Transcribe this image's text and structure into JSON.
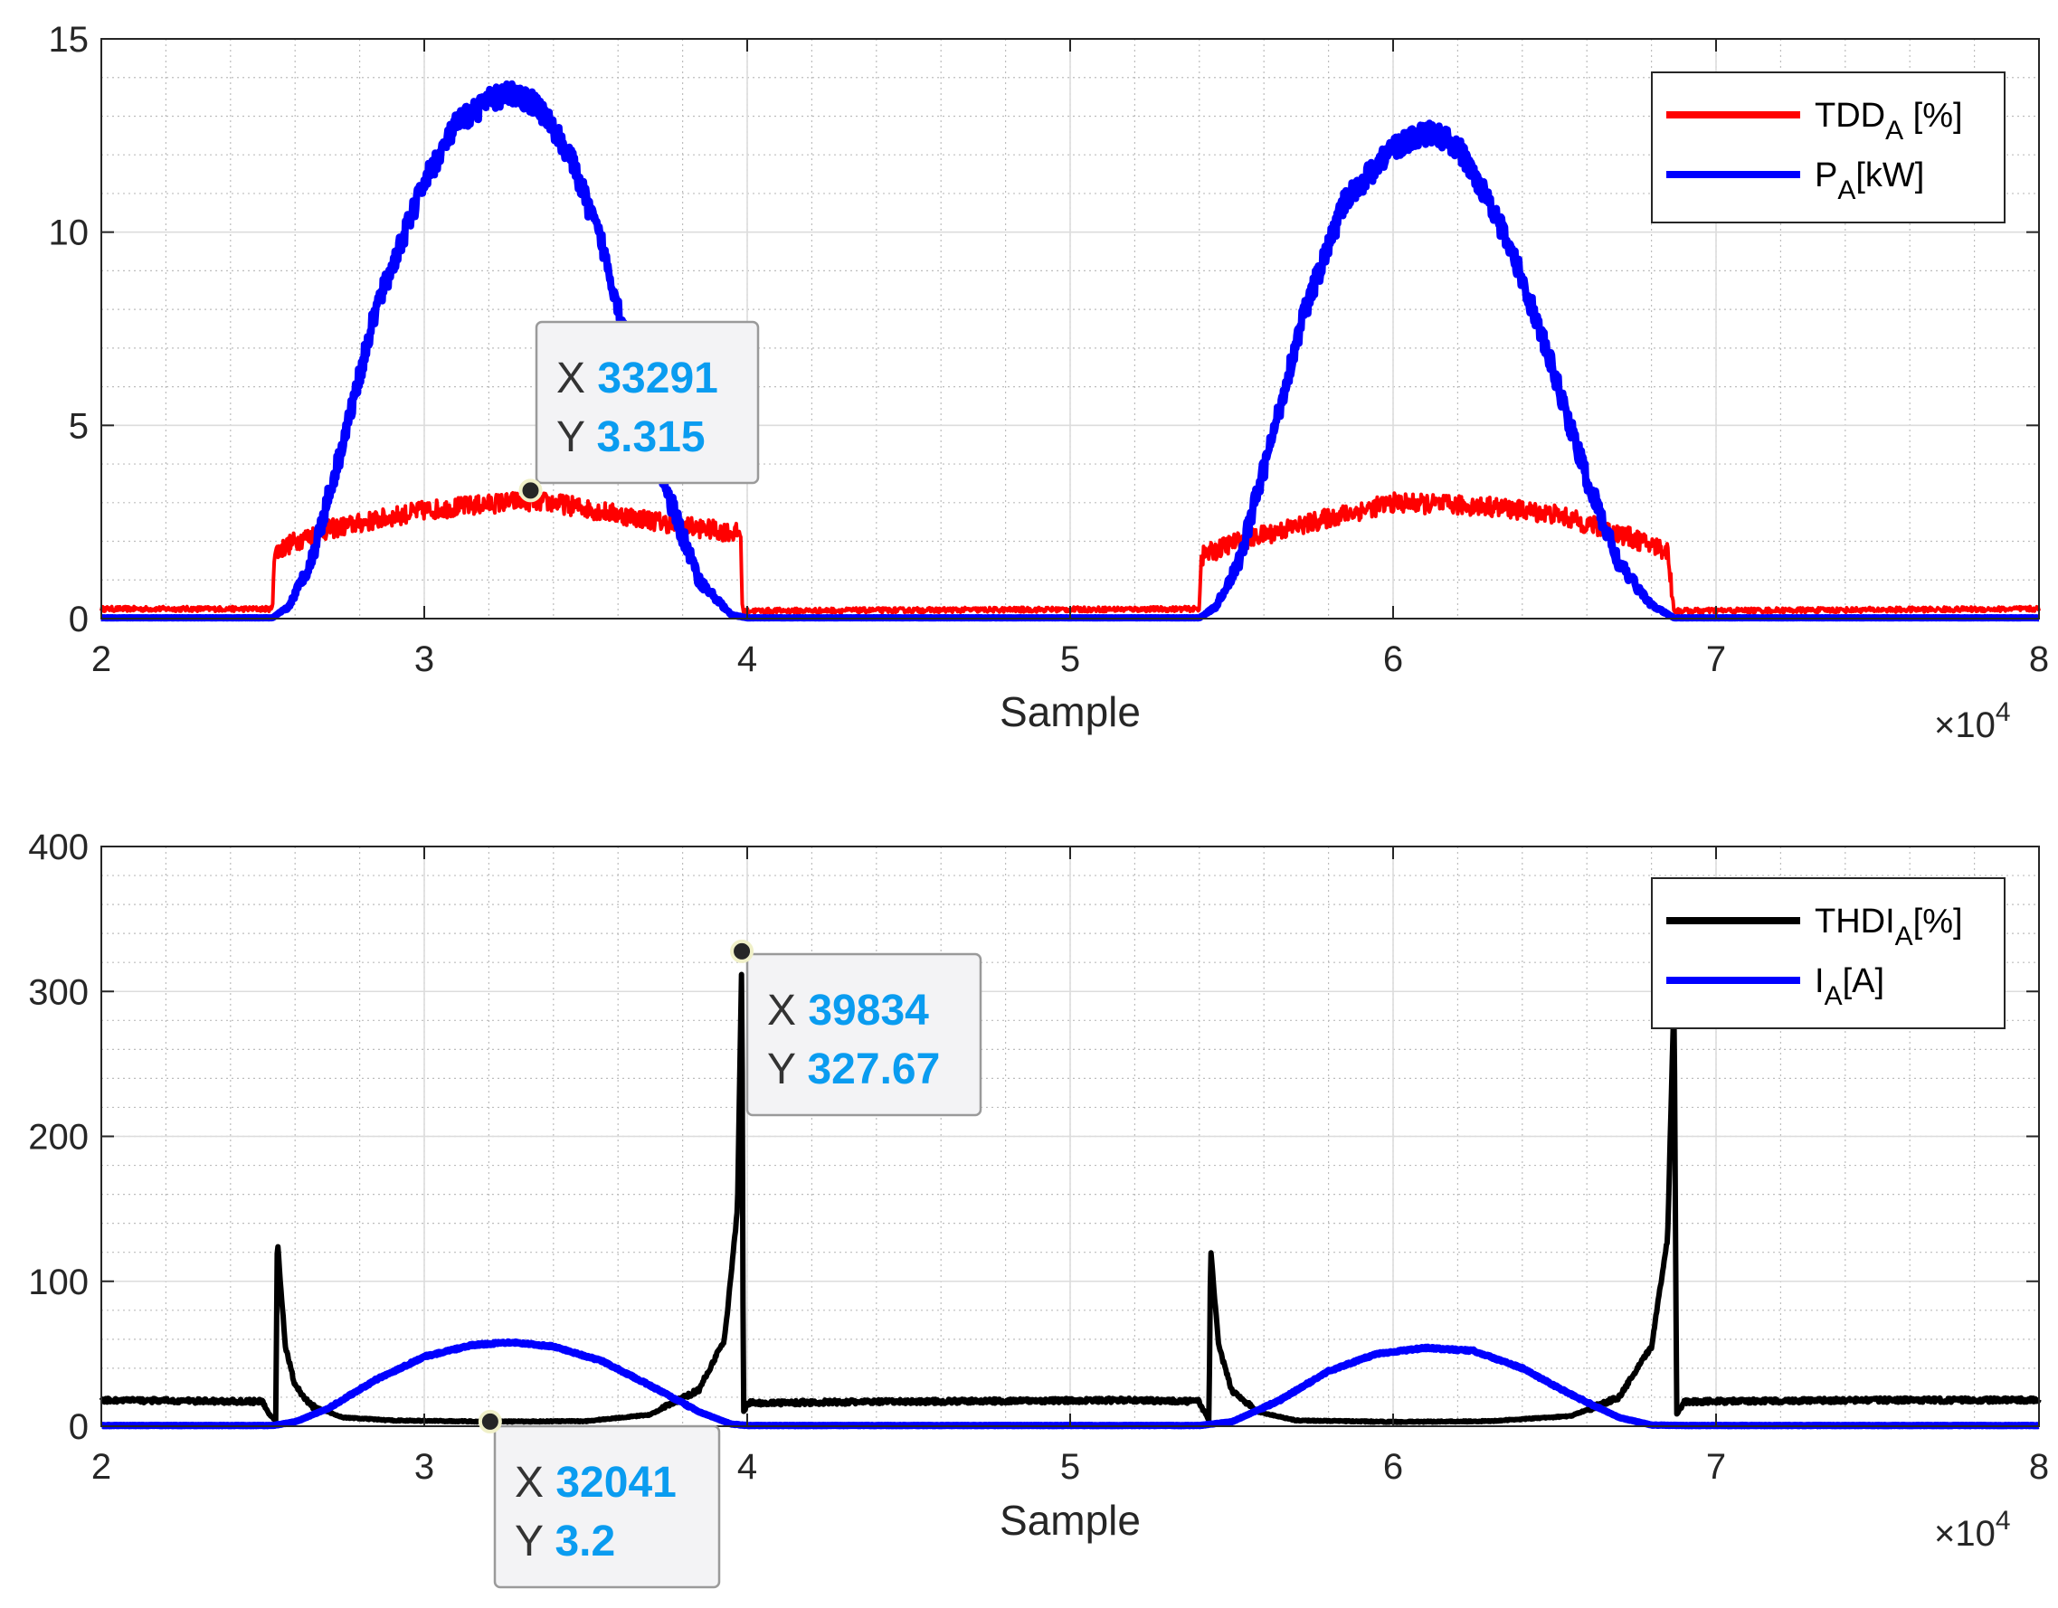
{
  "chart_data": [
    {
      "type": "line",
      "xlabel": "Sample",
      "x_exponent": {
        "base": "×10",
        "power": "4"
      },
      "xlim": [
        20000,
        80000
      ],
      "ylim": [
        0,
        15
      ],
      "x_ticks": [
        20000,
        30000,
        40000,
        50000,
        60000,
        70000,
        80000
      ],
      "x_tick_labels": [
        "2",
        "3",
        "4",
        "5",
        "6",
        "7",
        "8"
      ],
      "y_ticks": [
        0,
        5,
        10,
        15
      ],
      "y_tick_labels": [
        "0",
        "5",
        "10",
        "15"
      ],
      "grid": true,
      "minor_grid": true,
      "legend_position": "top-right",
      "series": [
        {
          "name": "TDD_A [%]",
          "legend_main": "TDD",
          "legend_sub": "A",
          "legend_tail": " [%]",
          "color": "#ff0000",
          "width": 4,
          "noise": 0.25,
          "points": [
            [
              20000,
              0.25
            ],
            [
              25300,
              0.25
            ],
            [
              25350,
              1.7
            ],
            [
              26000,
              2.0
            ],
            [
              27000,
              2.3
            ],
            [
              30000,
              2.8
            ],
            [
              33000,
              3.05
            ],
            [
              34000,
              3.0
            ],
            [
              36000,
              2.7
            ],
            [
              38000,
              2.4
            ],
            [
              39800,
              2.2
            ],
            [
              39850,
              0.2
            ],
            [
              54000,
              0.25
            ],
            [
              54050,
              1.6
            ],
            [
              55000,
              1.95
            ],
            [
              58000,
              2.6
            ],
            [
              60000,
              3.0
            ],
            [
              63000,
              2.9
            ],
            [
              65000,
              2.7
            ],
            [
              67000,
              2.2
            ],
            [
              68500,
              1.75
            ],
            [
              68700,
              0.2
            ],
            [
              80000,
              0.25
            ]
          ]
        },
        {
          "name": "P_A[kW]",
          "legend_main": "P",
          "legend_sub": "A",
          "legend_tail": "[kW]",
          "color": "#0000ff",
          "width": 8,
          "noise": 0.3,
          "noise_scaled": true,
          "points": [
            [
              20000,
              0.02
            ],
            [
              25300,
              0.02
            ],
            [
              25800,
              0.3
            ],
            [
              26500,
              1.5
            ],
            [
              27500,
              4.6
            ],
            [
              28500,
              8.0
            ],
            [
              30000,
              11.3
            ],
            [
              31000,
              12.8
            ],
            [
              32000,
              13.4
            ],
            [
              32700,
              13.6
            ],
            [
              33500,
              13.3
            ],
            [
              34500,
              12.0
            ],
            [
              35500,
              9.7
            ],
            [
              36500,
              6.5
            ],
            [
              37500,
              3.3
            ],
            [
              38500,
              1.0
            ],
            [
              39500,
              0.1
            ],
            [
              40000,
              0.02
            ],
            [
              54000,
              0.02
            ],
            [
              54500,
              0.3
            ],
            [
              55200,
              1.4
            ],
            [
              56200,
              4.5
            ],
            [
              57200,
              7.8
            ],
            [
              58500,
              10.8
            ],
            [
              60000,
              12.2
            ],
            [
              61200,
              12.6
            ],
            [
              62000,
              12.2
            ],
            [
              63000,
              10.8
            ],
            [
              64000,
              8.8
            ],
            [
              65000,
              6.3
            ],
            [
              66000,
              3.6
            ],
            [
              67000,
              1.4
            ],
            [
              68000,
              0.35
            ],
            [
              68700,
              0.02
            ],
            [
              80000,
              0.02
            ]
          ]
        }
      ],
      "datatips": [
        {
          "x": 33291,
          "y": 3.315,
          "x_label": "X",
          "y_label": "Y",
          "x_value": "33291",
          "y_value": "3.315"
        }
      ]
    },
    {
      "type": "line",
      "xlabel": "Sample",
      "x_exponent": {
        "base": "×10",
        "power": "4"
      },
      "xlim": [
        20000,
        80000
      ],
      "ylim": [
        0,
        400
      ],
      "x_ticks": [
        20000,
        30000,
        40000,
        50000,
        60000,
        70000,
        80000
      ],
      "x_tick_labels": [
        "2",
        "3",
        "4",
        "5",
        "6",
        "7",
        "8"
      ],
      "y_ticks": [
        0,
        100,
        200,
        300,
        400
      ],
      "y_tick_labels": [
        "0",
        "100",
        "200",
        "300",
        "400"
      ],
      "grid": true,
      "minor_grid": true,
      "legend_position": "top-right",
      "series": [
        {
          "name": "THDI_A[%]",
          "legend_main": "THDI",
          "legend_sub": "A",
          "legend_tail": "[%]",
          "color": "#000000",
          "width": 6,
          "noise": 1.5,
          "points": [
            [
              20000,
              18
            ],
            [
              25000,
              17
            ],
            [
              25200,
              8
            ],
            [
              25400,
              4
            ],
            [
              25450,
              128
            ],
            [
              25700,
              55
            ],
            [
              26000,
              28
            ],
            [
              26500,
              14
            ],
            [
              27500,
              6
            ],
            [
              29000,
              4
            ],
            [
              32000,
              3.2
            ],
            [
              35000,
              3.5
            ],
            [
              37000,
              8
            ],
            [
              38500,
              25
            ],
            [
              39300,
              60
            ],
            [
              39700,
              150
            ],
            [
              39834,
              327.67
            ],
            [
              39880,
              10
            ],
            [
              40000,
              16
            ],
            [
              45000,
              17
            ],
            [
              52000,
              18
            ],
            [
              54000,
              17
            ],
            [
              54300,
              4
            ],
            [
              54350,
              122
            ],
            [
              54600,
              55
            ],
            [
              55000,
              25
            ],
            [
              55800,
              10
            ],
            [
              57000,
              4
            ],
            [
              60000,
              3
            ],
            [
              63000,
              3.5
            ],
            [
              65500,
              7
            ],
            [
              67000,
              20
            ],
            [
              68000,
              55
            ],
            [
              68500,
              130
            ],
            [
              68700,
              300
            ],
            [
              68780,
              8
            ],
            [
              69000,
              17
            ],
            [
              75000,
              18
            ],
            [
              80000,
              18
            ]
          ]
        },
        {
          "name": "I_A[A]",
          "legend_main": "I",
          "legend_sub": "A",
          "legend_tail": "[A]",
          "color": "#0000ff",
          "width": 8,
          "noise": 0.6,
          "points": [
            [
              20000,
              0.5
            ],
            [
              25300,
              0.5
            ],
            [
              26000,
              3
            ],
            [
              27000,
              12
            ],
            [
              28500,
              32
            ],
            [
              30000,
              48
            ],
            [
              31500,
              56
            ],
            [
              32700,
              58
            ],
            [
              34000,
              55
            ],
            [
              35500,
              45
            ],
            [
              37000,
              28
            ],
            [
              38500,
              10
            ],
            [
              39500,
              1.5
            ],
            [
              40000,
              0.5
            ],
            [
              54000,
              0.5
            ],
            [
              55000,
              3
            ],
            [
              56500,
              18
            ],
            [
              58000,
              38
            ],
            [
              59500,
              50
            ],
            [
              61000,
              54
            ],
            [
              62500,
              52
            ],
            [
              64000,
              40
            ],
            [
              65500,
              22
            ],
            [
              67000,
              6
            ],
            [
              68000,
              0.8
            ],
            [
              69000,
              0.5
            ],
            [
              80000,
              0.5
            ]
          ]
        }
      ],
      "datatips": [
        {
          "x": 39834,
          "y": 327.67,
          "x_label": "X",
          "y_label": "Y",
          "x_value": "39834",
          "y_value": "327.67"
        },
        {
          "x": 32041,
          "y": 3.2,
          "x_label": "X",
          "y_label": "Y",
          "x_value": "32041",
          "y_value": "3.2"
        }
      ]
    }
  ],
  "colors": {
    "axis": "#262626",
    "grid_major": "#dcdcdc",
    "grid_minor": "#bdbdbd",
    "datatip_bg": "#f3f3f5",
    "datatip_border": "#9a9a9a",
    "datatip_label": "#333333",
    "datatip_value": "#0a9cf0",
    "marker_fill": "#262626",
    "marker_ring": "#f0f0c8"
  }
}
